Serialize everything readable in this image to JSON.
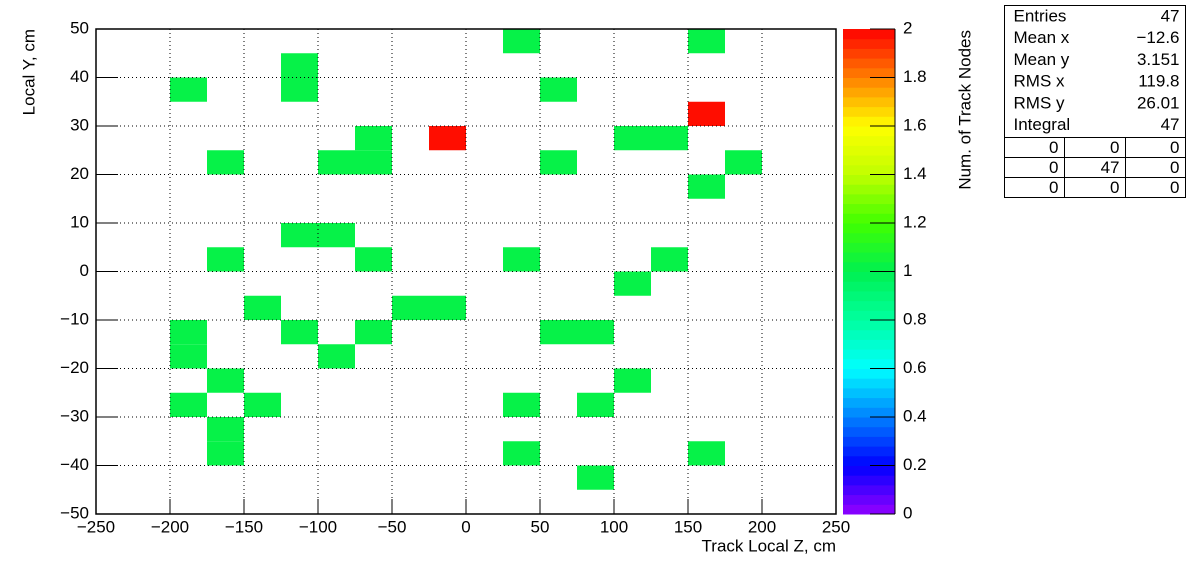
{
  "chart_data": {
    "type": "heatmap2d",
    "xlabel": "Track Local Z, cm",
    "ylabel": "Local Y, cm",
    "zlabel": "Num. of Track Nodes",
    "xlim": [
      -250,
      250
    ],
    "ylim": [
      -50,
      50
    ],
    "zlim": [
      0,
      2
    ],
    "xbins": [
      -250,
      -225,
      -200,
      -175,
      -150,
      -125,
      -100,
      -75,
      -50,
      -25,
      0,
      25,
      50,
      75,
      100,
      125,
      150,
      175,
      200,
      225,
      250
    ],
    "ybins": [
      -50,
      -45,
      -40,
      -35,
      -30,
      -25,
      -20,
      -15,
      -10,
      -5,
      0,
      5,
      10,
      15,
      20,
      25,
      30,
      35,
      40,
      45,
      50
    ],
    "xticks": [
      {
        "value": -250,
        "label": "−250"
      },
      {
        "value": -200,
        "label": "−200"
      },
      {
        "value": -150,
        "label": "−150"
      },
      {
        "value": -100,
        "label": "−100"
      },
      {
        "value": -50,
        "label": "−50"
      },
      0,
      50,
      100,
      150,
      200,
      250
    ],
    "yticks": [
      {
        "value": -50,
        "label": "−50"
      },
      {
        "value": -40,
        "label": "−40"
      },
      {
        "value": -30,
        "label": "−30"
      },
      {
        "value": -20,
        "label": "−20"
      },
      {
        "value": -10,
        "label": "−10"
      },
      0,
      10,
      20,
      30,
      40,
      50
    ],
    "zticks": [
      0,
      0.2,
      0.4,
      0.6,
      0.8,
      1,
      1.2,
      1.4,
      1.6,
      1.8,
      2
    ],
    "grid": true,
    "palette": [
      "#9400ff",
      "#0000ff",
      "#0080ff",
      "#00ffff",
      "#00ffa0",
      "#00f050",
      "#40ff00",
      "#c0ff00",
      "#ffff00",
      "#ff8000",
      "#ff0000"
    ],
    "cells": [
      {
        "x": 25,
        "y": 45,
        "value": 1
      },
      {
        "x": 150,
        "y": 45,
        "value": 1
      },
      {
        "x": -125,
        "y": 40,
        "value": 1
      },
      {
        "x": -125,
        "y": 35,
        "value": 1
      },
      {
        "x": -200,
        "y": 35,
        "value": 1
      },
      {
        "x": 50,
        "y": 35,
        "value": 1
      },
      {
        "x": 150,
        "y": 30,
        "value": 2
      },
      {
        "x": -75,
        "y": 25,
        "value": 1
      },
      {
        "x": -75,
        "y": 20,
        "value": 1
      },
      {
        "x": -25,
        "y": 25,
        "value": 2
      },
      {
        "x": 100,
        "y": 25,
        "value": 1
      },
      {
        "x": 125,
        "y": 25,
        "value": 1
      },
      {
        "x": -175,
        "y": 20,
        "value": 1
      },
      {
        "x": -100,
        "y": 20,
        "value": 1
      },
      {
        "x": 50,
        "y": 20,
        "value": 1
      },
      {
        "x": 175,
        "y": 20,
        "value": 1
      },
      {
        "x": 150,
        "y": 15,
        "value": 1
      },
      {
        "x": -125,
        "y": 5,
        "value": 1
      },
      {
        "x": -100,
        "y": 5,
        "value": 1
      },
      {
        "x": -175,
        "y": 0,
        "value": 1
      },
      {
        "x": -75,
        "y": 0,
        "value": 1
      },
      {
        "x": 25,
        "y": 0,
        "value": 1
      },
      {
        "x": 125,
        "y": 0,
        "value": 1
      },
      {
        "x": 100,
        "y": -5,
        "value": 1
      },
      {
        "x": -150,
        "y": -10,
        "value": 1
      },
      {
        "x": -50,
        "y": -10,
        "value": 1
      },
      {
        "x": -25,
        "y": -10,
        "value": 1
      },
      {
        "x": -200,
        "y": -15,
        "value": 1
      },
      {
        "x": -200,
        "y": -20,
        "value": 1
      },
      {
        "x": -125,
        "y": -15,
        "value": 1
      },
      {
        "x": -75,
        "y": -15,
        "value": 1
      },
      {
        "x": 50,
        "y": -15,
        "value": 1
      },
      {
        "x": 75,
        "y": -15,
        "value": 1
      },
      {
        "x": -100,
        "y": -20,
        "value": 1
      },
      {
        "x": -175,
        "y": -25,
        "value": 1
      },
      {
        "x": 100,
        "y": -25,
        "value": 1
      },
      {
        "x": -200,
        "y": -30,
        "value": 1
      },
      {
        "x": -150,
        "y": -30,
        "value": 1
      },
      {
        "x": 25,
        "y": -30,
        "value": 1
      },
      {
        "x": 75,
        "y": -30,
        "value": 1
      },
      {
        "x": -175,
        "y": -35,
        "value": 1
      },
      {
        "x": -175,
        "y": -40,
        "value": 1
      },
      {
        "x": 25,
        "y": -40,
        "value": 1
      },
      {
        "x": 150,
        "y": -40,
        "value": 1
      },
      {
        "x": 75,
        "y": -45,
        "value": 1
      }
    ]
  },
  "stats": {
    "rows": [
      [
        "Entries",
        "47"
      ],
      [
        "Mean x",
        "−12.6"
      ],
      [
        "Mean y",
        "3.151"
      ],
      [
        "RMS x",
        "119.8"
      ],
      [
        "RMS y",
        "26.01"
      ],
      [
        "Integral",
        "47"
      ]
    ],
    "grid": [
      [
        0,
        0,
        0
      ],
      [
        0,
        47,
        0
      ],
      [
        0,
        0,
        0
      ]
    ]
  }
}
